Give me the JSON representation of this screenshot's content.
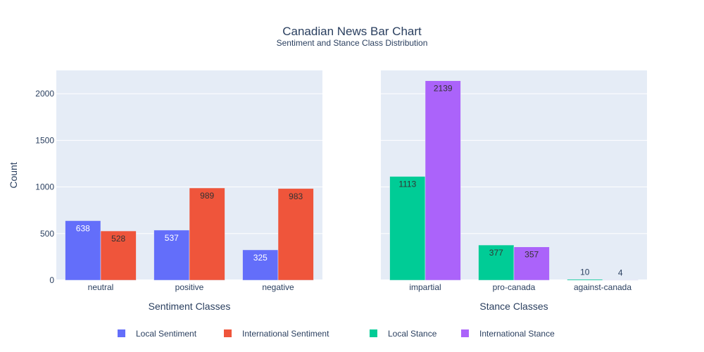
{
  "title": "Canadian News Bar Chart",
  "subtitle": "Sentiment and Stance Class Distribution",
  "ylabel": "Count",
  "chart_data": [
    {
      "type": "bar",
      "xlabel": "Sentiment Classes",
      "ylabel": "Count",
      "categories": [
        "neutral",
        "positive",
        "negative"
      ],
      "ylim": [
        0,
        2250
      ],
      "yticks": [
        0,
        500,
        1000,
        1500,
        2000
      ],
      "series": [
        {
          "name": "Local Sentiment",
          "values": [
            638,
            537,
            325
          ],
          "color": "#636efa"
        },
        {
          "name": "International Sentiment",
          "values": [
            528,
            989,
            983
          ],
          "color": "#ef553b"
        }
      ]
    },
    {
      "type": "bar",
      "xlabel": "Stance Classes",
      "categories": [
        "impartial",
        "pro-canada",
        "against-canada"
      ],
      "ylim": [
        0,
        2250
      ],
      "yticks": [
        0,
        500,
        1000,
        1500,
        2000
      ],
      "series": [
        {
          "name": "Local Stance",
          "values": [
            1113,
            377,
            10
          ],
          "color": "#00cc96"
        },
        {
          "name": "International Stance",
          "values": [
            2139,
            357,
            4
          ],
          "color": "#ab63fa"
        }
      ]
    }
  ],
  "legend": [
    {
      "label": "Local Sentiment",
      "color": "#636efa"
    },
    {
      "label": "International Sentiment",
      "color": "#ef553b"
    },
    {
      "label": "Local Stance",
      "color": "#00cc96"
    },
    {
      "label": "International Stance",
      "color": "#ab63fa"
    }
  ],
  "plot_background": "#e5ecf6",
  "gridlines": true,
  "legend_position": "bottom-center"
}
